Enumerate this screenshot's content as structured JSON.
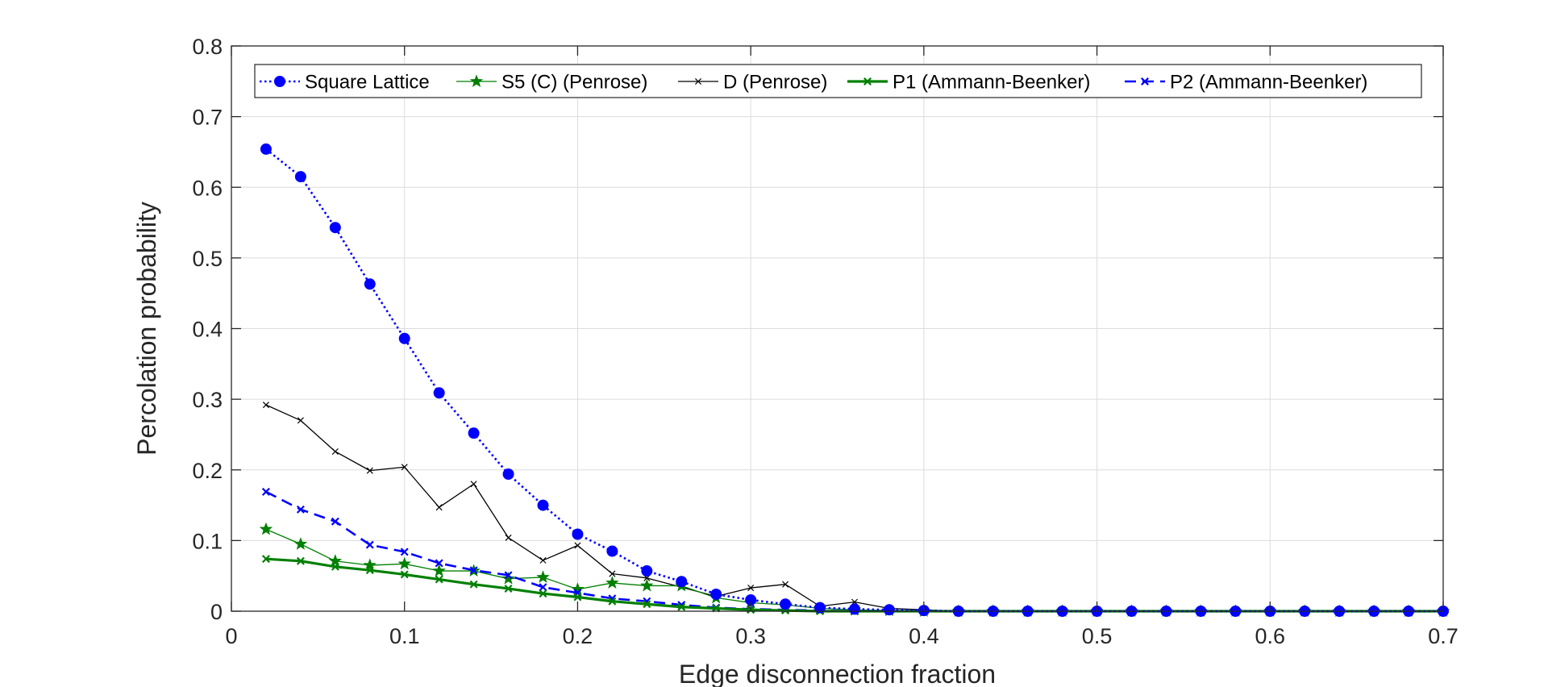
{
  "chart_data": {
    "type": "line",
    "xlabel": "Edge disconnection fraction",
    "ylabel": "Percolation probability",
    "xlim": [
      0,
      0.7
    ],
    "ylim": [
      0,
      0.8
    ],
    "xticks": [
      0,
      0.1,
      0.2,
      0.3,
      0.4,
      0.5,
      0.6,
      0.7
    ],
    "yticks": [
      0,
      0.1,
      0.2,
      0.3,
      0.4,
      0.5,
      0.6,
      0.7,
      0.8
    ],
    "xtick_labels": [
      "0",
      "0.1",
      "0.2",
      "0.3",
      "0.4",
      "0.5",
      "0.6",
      "0.7"
    ],
    "ytick_labels": [
      "0",
      "0.1",
      "0.2",
      "0.3",
      "0.4",
      "0.5",
      "0.6",
      "0.7",
      "0.8"
    ],
    "grid": true,
    "legend_position": "top",
    "x": [
      0.02,
      0.04,
      0.06,
      0.08,
      0.1,
      0.12,
      0.14,
      0.16,
      0.18,
      0.2,
      0.22,
      0.24,
      0.26,
      0.28,
      0.3,
      0.32,
      0.34,
      0.36,
      0.38,
      0.4,
      0.42,
      0.44,
      0.46,
      0.48,
      0.5,
      0.52,
      0.54,
      0.56,
      0.58,
      0.6,
      0.62,
      0.64,
      0.66,
      0.68,
      0.7
    ],
    "series": [
      {
        "name": "Square Lattice",
        "color": "#0000ff",
        "dash": "dotted",
        "marker": "circle",
        "width": 2.6,
        "values": [
          0.654,
          0.615,
          0.543,
          0.463,
          0.386,
          0.309,
          0.252,
          0.194,
          0.15,
          0.109,
          0.085,
          0.057,
          0.042,
          0.024,
          0.016,
          0.01,
          0.005,
          0.003,
          0.002,
          0.001,
          0.0,
          0.0,
          0.0,
          0.0,
          0.0,
          0.0,
          0.0,
          0.0,
          0.0,
          0.0,
          0.0,
          0.0,
          0.0,
          0.0,
          0.0
        ]
      },
      {
        "name": "S5 (C) (Penrose)",
        "color": "#008000",
        "dash": "solid",
        "marker": "star",
        "width": 1.3,
        "values": [
          0.116,
          0.095,
          0.071,
          0.065,
          0.067,
          0.057,
          0.057,
          0.046,
          0.048,
          0.031,
          0.04,
          0.036,
          0.036,
          0.019,
          0.012,
          0.009,
          0.004,
          0.002,
          0.001,
          0.0,
          0.0,
          0.0,
          0.0,
          0.0,
          0.0,
          0.0,
          0.0,
          0.0,
          0.0,
          0.0,
          0.0,
          0.0,
          0.0,
          0.0,
          0.0
        ]
      },
      {
        "name": "D (Penrose)",
        "color": "#000000",
        "dash": "solid",
        "marker": "x",
        "width": 1.3,
        "values": [
          0.292,
          0.27,
          0.226,
          0.199,
          0.204,
          0.147,
          0.18,
          0.104,
          0.072,
          0.093,
          0.053,
          0.047,
          0.034,
          0.021,
          0.033,
          0.038,
          0.007,
          0.013,
          0.004,
          0.002,
          0.0,
          0.0,
          0.0,
          0.0,
          0.0,
          0.0,
          0.0,
          0.0,
          0.0,
          0.0,
          0.0,
          0.0,
          0.0,
          0.0,
          0.0
        ]
      },
      {
        "name": "P1 (Ammann-Beenker)",
        "color": "#008000",
        "dash": "solid",
        "marker": "x",
        "width": 3.2,
        "values": [
          0.074,
          0.071,
          0.063,
          0.058,
          0.052,
          0.045,
          0.038,
          0.032,
          0.025,
          0.02,
          0.014,
          0.01,
          0.006,
          0.004,
          0.002,
          0.001,
          0.0,
          0.0,
          0.0,
          0.0,
          0.0,
          0.0,
          0.0,
          0.0,
          0.0,
          0.0,
          0.0,
          0.0,
          0.0,
          0.0,
          0.0,
          0.0,
          0.0,
          0.0,
          0.0
        ]
      },
      {
        "name": "P2 (Ammann-Beenker)",
        "color": "#0000ff",
        "dash": "dashed",
        "marker": "x",
        "width": 2.6,
        "values": [
          0.169,
          0.144,
          0.127,
          0.094,
          0.084,
          0.068,
          0.058,
          0.051,
          0.034,
          0.026,
          0.018,
          0.014,
          0.009,
          0.005,
          0.003,
          0.002,
          0.001,
          0.0,
          0.0,
          0.0,
          0.0,
          0.0,
          0.0,
          0.0,
          0.0,
          0.0,
          0.0,
          0.0,
          0.0,
          0.0,
          0.0,
          0.0,
          0.0,
          0.0,
          0.0
        ]
      }
    ]
  }
}
